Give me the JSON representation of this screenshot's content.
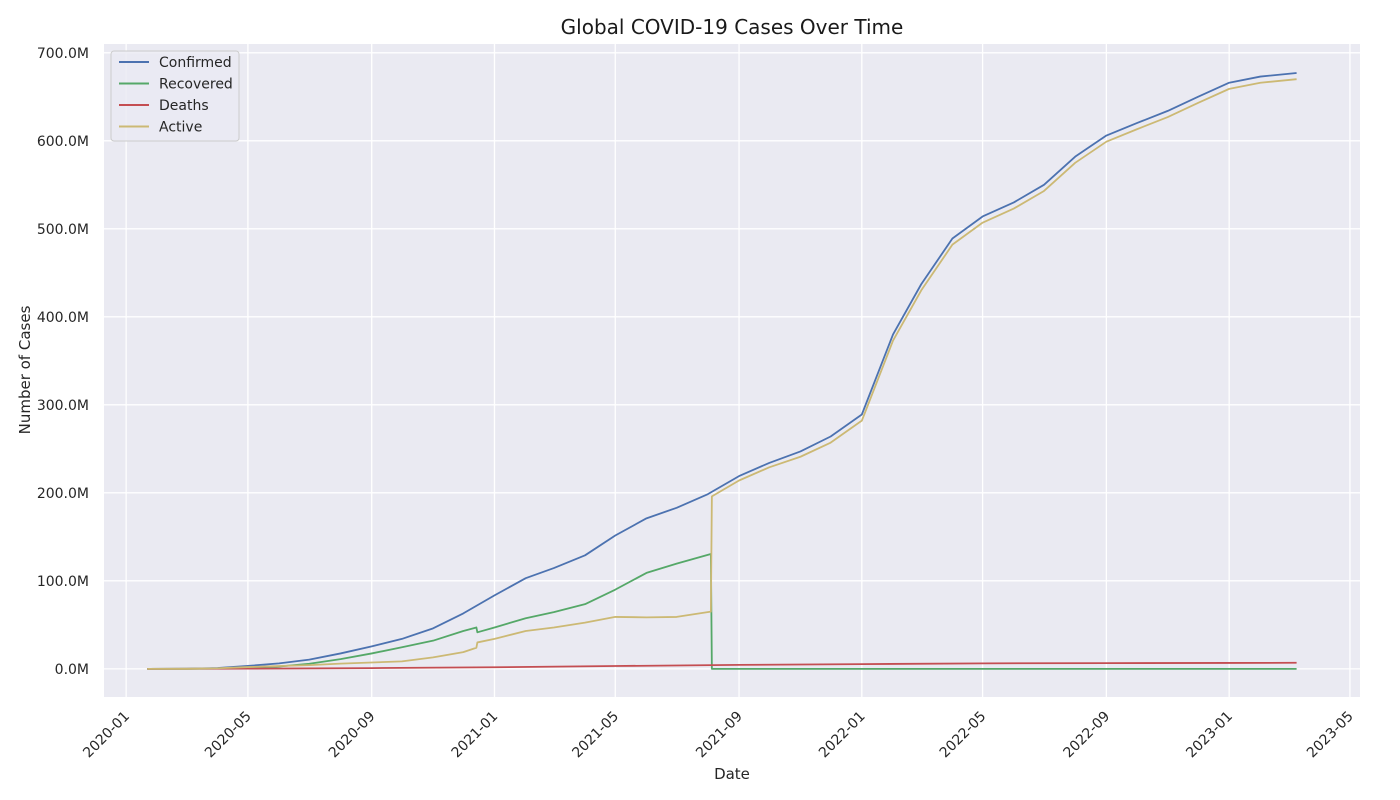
{
  "chart_data": {
    "type": "line",
    "title": "Global COVID-19 Cases Over Time",
    "xlabel": "Date",
    "ylabel": "Number of Cases",
    "x_ticks": [
      "2020-01",
      "2020-05",
      "2020-09",
      "2021-01",
      "2021-05",
      "2021-09",
      "2022-01",
      "2022-05",
      "2022-09",
      "2023-01",
      "2023-05"
    ],
    "xlim": [
      "2019-12-10",
      "2023-05-11"
    ],
    "y_ticks": [
      "0.0M",
      "100.0M",
      "200.0M",
      "300.0M",
      "400.0M",
      "500.0M",
      "600.0M",
      "700.0M"
    ],
    "ylim": [
      -32000000,
      710000000
    ],
    "grid": true,
    "legend": "upper-left",
    "colors": {
      "background": "#eaeaf2",
      "grid": "#ffffff"
    },
    "series": [
      {
        "name": "Confirmed",
        "color": "#4c72b0",
        "points": [
          [
            "2020-01-22",
            0
          ],
          [
            "2020-03-01",
            90000
          ],
          [
            "2020-04-01",
            900000
          ],
          [
            "2020-05-01",
            3300000
          ],
          [
            "2020-06-01",
            6200000
          ],
          [
            "2020-07-01",
            10500000
          ],
          [
            "2020-08-01",
            17500000
          ],
          [
            "2020-09-01",
            25500000
          ],
          [
            "2020-10-01",
            34000000
          ],
          [
            "2020-11-01",
            46000000
          ],
          [
            "2020-12-01",
            63000000
          ],
          [
            "2021-01-01",
            83500000
          ],
          [
            "2021-02-01",
            103000000
          ],
          [
            "2021-03-01",
            114500000
          ],
          [
            "2021-04-01",
            129000000
          ],
          [
            "2021-05-01",
            151500000
          ],
          [
            "2021-06-01",
            171000000
          ],
          [
            "2021-07-01",
            183000000
          ],
          [
            "2021-08-01",
            198500000
          ],
          [
            "2021-09-01",
            219000000
          ],
          [
            "2021-10-01",
            234000000
          ],
          [
            "2021-11-01",
            247000000
          ],
          [
            "2021-12-01",
            264000000
          ],
          [
            "2022-01-01",
            289000000
          ],
          [
            "2022-02-01",
            380000000
          ],
          [
            "2022-03-01",
            437000000
          ],
          [
            "2022-04-01",
            489000000
          ],
          [
            "2022-05-01",
            514000000
          ],
          [
            "2022-06-01",
            530000000
          ],
          [
            "2022-07-01",
            550000000
          ],
          [
            "2022-08-01",
            582000000
          ],
          [
            "2022-09-01",
            606000000
          ],
          [
            "2022-10-01",
            620000000
          ],
          [
            "2022-11-01",
            634000000
          ],
          [
            "2022-12-01",
            650000000
          ],
          [
            "2023-01-01",
            666000000
          ],
          [
            "2023-02-01",
            673000000
          ],
          [
            "2023-03-09",
            677000000
          ]
        ]
      },
      {
        "name": "Recovered",
        "color": "#55a868",
        "points": [
          [
            "2020-01-22",
            0
          ],
          [
            "2020-03-01",
            40000
          ],
          [
            "2020-04-01",
            200000
          ],
          [
            "2020-05-01",
            1100000
          ],
          [
            "2020-06-01",
            2700000
          ],
          [
            "2020-07-01",
            5800000
          ],
          [
            "2020-08-01",
            11000000
          ],
          [
            "2020-09-01",
            17500000
          ],
          [
            "2020-10-01",
            24500000
          ],
          [
            "2020-11-01",
            32000000
          ],
          [
            "2020-12-01",
            43000000
          ],
          [
            "2020-12-14",
            47000000
          ],
          [
            "2020-12-15",
            41500000
          ],
          [
            "2021-01-01",
            47000000
          ],
          [
            "2021-02-01",
            57500000
          ],
          [
            "2021-03-01",
            64500000
          ],
          [
            "2021-04-01",
            73500000
          ],
          [
            "2021-05-01",
            90000000
          ],
          [
            "2021-06-01",
            109000000
          ],
          [
            "2021-07-01",
            119500000
          ],
          [
            "2021-08-04",
            130500000
          ],
          [
            "2021-08-05",
            0
          ],
          [
            "2023-03-09",
            0
          ]
        ]
      },
      {
        "name": "Deaths",
        "color": "#c44e52",
        "points": [
          [
            "2020-01-22",
            0
          ],
          [
            "2020-05-01",
            230000
          ],
          [
            "2020-09-01",
            850000
          ],
          [
            "2021-01-01",
            1800000
          ],
          [
            "2021-05-01",
            3200000
          ],
          [
            "2021-09-01",
            4500000
          ],
          [
            "2022-01-01",
            5400000
          ],
          [
            "2022-05-01",
            6250000
          ],
          [
            "2022-09-01",
            6500000
          ],
          [
            "2023-01-01",
            6700000
          ],
          [
            "2023-03-09",
            6880000
          ]
        ]
      },
      {
        "name": "Active",
        "color": "#ccb974",
        "points": [
          [
            "2020-01-22",
            0
          ],
          [
            "2020-03-01",
            50000
          ],
          [
            "2020-04-01",
            650000
          ],
          [
            "2020-05-01",
            2000000
          ],
          [
            "2020-06-01",
            3200000
          ],
          [
            "2020-07-01",
            4200000
          ],
          [
            "2020-08-01",
            5900000
          ],
          [
            "2020-09-01",
            7200000
          ],
          [
            "2020-10-01",
            8500000
          ],
          [
            "2020-11-01",
            13000000
          ],
          [
            "2020-12-01",
            19000000
          ],
          [
            "2020-12-14",
            24000000
          ],
          [
            "2020-12-15",
            30000000
          ],
          [
            "2021-01-01",
            34000000
          ],
          [
            "2021-02-01",
            43000000
          ],
          [
            "2021-03-01",
            47000000
          ],
          [
            "2021-04-01",
            52500000
          ],
          [
            "2021-05-01",
            59000000
          ],
          [
            "2021-06-01",
            58500000
          ],
          [
            "2021-07-01",
            59000000
          ],
          [
            "2021-08-04",
            65000000
          ],
          [
            "2021-08-05",
            196000000
          ],
          [
            "2021-09-01",
            214000000
          ],
          [
            "2021-10-01",
            229000000
          ],
          [
            "2021-11-01",
            241000000
          ],
          [
            "2021-12-01",
            257000000
          ],
          [
            "2022-01-01",
            282000000
          ],
          [
            "2022-02-01",
            373000000
          ],
          [
            "2022-03-01",
            430000000
          ],
          [
            "2022-04-01",
            482000000
          ],
          [
            "2022-05-01",
            507000000
          ],
          [
            "2022-06-01",
            523000000
          ],
          [
            "2022-07-01",
            543000000
          ],
          [
            "2022-08-01",
            575000000
          ],
          [
            "2022-09-01",
            599000000
          ],
          [
            "2022-10-01",
            613000000
          ],
          [
            "2022-11-01",
            627000000
          ],
          [
            "2022-12-01",
            643000000
          ],
          [
            "2023-01-01",
            659000000
          ],
          [
            "2023-02-01",
            666000000
          ],
          [
            "2023-03-09",
            670000000
          ]
        ]
      }
    ]
  }
}
